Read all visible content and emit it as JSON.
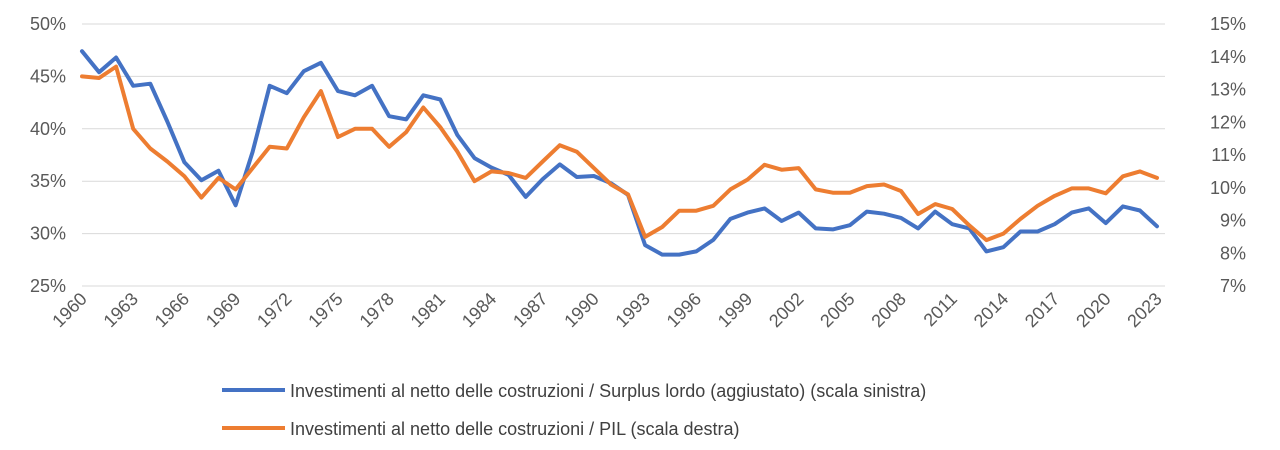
{
  "chart_data": {
    "type": "line",
    "title": "",
    "x": [
      1960,
      1961,
      1962,
      1963,
      1964,
      1965,
      1966,
      1967,
      1968,
      1969,
      1970,
      1971,
      1972,
      1973,
      1974,
      1975,
      1976,
      1977,
      1978,
      1979,
      1980,
      1981,
      1982,
      1983,
      1984,
      1985,
      1986,
      1987,
      1988,
      1989,
      1990,
      1991,
      1992,
      1993,
      1994,
      1995,
      1996,
      1997,
      1998,
      1999,
      2000,
      2001,
      2002,
      2003,
      2004,
      2005,
      2006,
      2007,
      2008,
      2009,
      2010,
      2011,
      2012,
      2013,
      2014,
      2015,
      2016,
      2017,
      2018,
      2019,
      2020,
      2021,
      2022,
      2023
    ],
    "x_tick_labels": [
      "1960",
      "1963",
      "1966",
      "1969",
      "1972",
      "1975",
      "1978",
      "1981",
      "1984",
      "1987",
      "1990",
      "1993",
      "1996",
      "1999",
      "2002",
      "2005",
      "2008",
      "2011",
      "2014",
      "2017",
      "2020",
      "2023"
    ],
    "y_left": {
      "ticks": [
        "25%",
        "30%",
        "35%",
        "40%",
        "45%",
        "50%"
      ],
      "ylim": [
        25,
        50
      ]
    },
    "y_right": {
      "ticks": [
        "7%",
        "8%",
        "9%",
        "10%",
        "11%",
        "12%",
        "13%",
        "14%",
        "15%"
      ],
      "ylim": [
        7,
        15
      ]
    },
    "grid": "horizontal",
    "legend_position": "bottom",
    "series": [
      {
        "name": "Investimenti al netto delle costruzioni / Surplus lordo (aggiustato) (scala sinistra)",
        "axis": "left",
        "color": "#4472C4",
        "values": [
          47.4,
          45.4,
          46.8,
          44.1,
          44.3,
          40.7,
          36.8,
          35.1,
          36.0,
          32.7,
          37.8,
          44.1,
          43.4,
          45.5,
          46.3,
          43.6,
          43.2,
          44.1,
          41.2,
          40.9,
          43.2,
          42.8,
          39.4,
          37.2,
          36.3,
          35.6,
          33.5,
          35.2,
          36.6,
          35.4,
          35.5,
          34.8,
          33.7,
          28.9,
          28.0,
          28.0,
          28.3,
          29.4,
          31.4,
          32.0,
          32.4,
          31.2,
          32.0,
          30.5,
          30.4,
          30.8,
          32.1,
          31.9,
          31.5,
          30.5,
          32.1,
          30.9,
          30.5,
          28.3,
          28.7,
          30.2,
          30.2,
          30.9,
          32.0,
          32.4,
          31.0,
          32.6,
          32.2,
          30.7
        ]
      },
      {
        "name": "Investimenti al netto delle costruzioni / PIL (scala destra)",
        "axis": "right",
        "color": "#ED7D31",
        "values": [
          13.4,
          13.35,
          13.7,
          11.8,
          11.2,
          10.8,
          10.35,
          9.7,
          10.3,
          9.95,
          10.6,
          11.25,
          11.2,
          12.15,
          12.95,
          11.55,
          11.8,
          11.8,
          11.25,
          11.7,
          12.45,
          11.85,
          11.1,
          10.2,
          10.5,
          10.45,
          10.3,
          10.8,
          11.3,
          11.1,
          10.6,
          10.1,
          9.8,
          8.5,
          8.8,
          9.3,
          9.3,
          9.45,
          9.95,
          10.25,
          10.7,
          10.55,
          10.6,
          9.95,
          9.85,
          9.85,
          10.05,
          10.1,
          9.9,
          9.2,
          9.5,
          9.35,
          8.85,
          8.4,
          8.6,
          9.05,
          9.45,
          9.75,
          9.98,
          9.98,
          9.83,
          10.35,
          10.5,
          10.3
        ]
      }
    ]
  }
}
